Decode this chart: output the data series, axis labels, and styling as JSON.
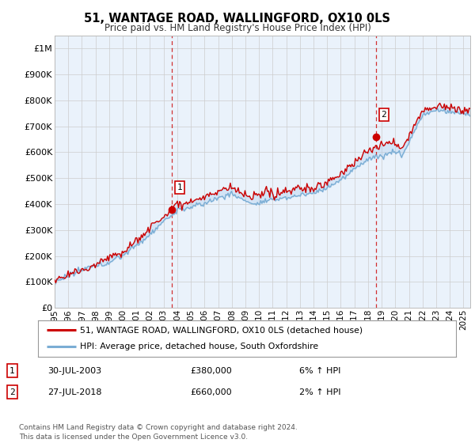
{
  "title": "51, WANTAGE ROAD, WALLINGFORD, OX10 0LS",
  "subtitle": "Price paid vs. HM Land Registry's House Price Index (HPI)",
  "ylabel_ticks": [
    "£0",
    "£100K",
    "£200K",
    "£300K",
    "£400K",
    "£500K",
    "£600K",
    "£700K",
    "£800K",
    "£900K",
    "£1M"
  ],
  "ytick_values": [
    0,
    100000,
    200000,
    300000,
    400000,
    500000,
    600000,
    700000,
    800000,
    900000,
    1000000
  ],
  "ylim": [
    0,
    1050000
  ],
  "xlim_start": 1995.0,
  "xlim_end": 2025.5,
  "sale1_x": 2003.57,
  "sale1_y": 380000,
  "sale1_label": "1",
  "sale1_date": "30-JUL-2003",
  "sale1_price": "£380,000",
  "sale1_hpi": "6% ↑ HPI",
  "sale2_x": 2018.57,
  "sale2_y": 660000,
  "sale2_label": "2",
  "sale2_date": "27-JUL-2018",
  "sale2_price": "£660,000",
  "sale2_hpi": "2% ↑ HPI",
  "line_color_property": "#cc0000",
  "line_color_hpi": "#7aadd4",
  "fill_color": "#ddeeff",
  "vline_color": "#cc0000",
  "background_color": "#ffffff",
  "chart_bg": "#f0f4ff",
  "legend_label_property": "51, WANTAGE ROAD, WALLINGFORD, OX10 0LS (detached house)",
  "legend_label_hpi": "HPI: Average price, detached house, South Oxfordshire",
  "footer": "Contains HM Land Registry data © Crown copyright and database right 2024.\nThis data is licensed under the Open Government Licence v3.0.",
  "xtick_years": [
    1995,
    1996,
    1997,
    1998,
    1999,
    2000,
    2001,
    2002,
    2003,
    2004,
    2005,
    2006,
    2007,
    2008,
    2009,
    2010,
    2011,
    2012,
    2013,
    2014,
    2015,
    2016,
    2017,
    2018,
    2019,
    2020,
    2021,
    2022,
    2023,
    2024,
    2025
  ]
}
